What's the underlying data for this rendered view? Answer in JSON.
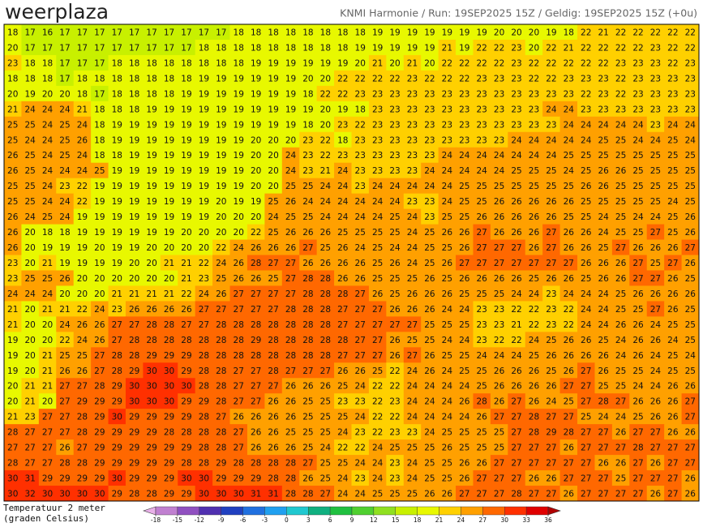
{
  "header": {
    "logo": "weerplaza",
    "title": "KNMI Harmonie / Run: 19SEP2025 15Z / Geldig: 19SEP2025 15Z (+0u)"
  },
  "map": {
    "grid": [
      [
        18,
        17,
        16,
        17,
        17,
        17,
        17,
        17,
        17,
        17,
        17,
        17,
        17,
        18,
        18,
        18,
        18,
        18,
        18,
        18,
        18,
        19,
        19,
        19,
        19,
        19,
        19,
        19,
        20,
        20,
        20,
        19,
        18,
        22,
        21,
        22,
        22,
        22,
        22,
        22
      ],
      [
        20,
        17,
        17,
        17,
        17,
        17,
        17,
        17,
        17,
        17,
        17,
        18,
        18,
        18,
        18,
        18,
        18,
        18,
        18,
        18,
        19,
        19,
        19,
        19,
        19,
        21,
        19,
        22,
        22,
        23,
        20,
        22,
        21,
        22,
        22,
        22,
        22,
        23,
        22,
        22
      ],
      [
        23,
        18,
        18,
        17,
        17,
        17,
        18,
        18,
        18,
        18,
        18,
        18,
        18,
        18,
        19,
        19,
        19,
        19,
        19,
        19,
        20,
        21,
        20,
        21,
        20,
        22,
        22,
        22,
        22,
        23,
        22,
        22,
        22,
        22,
        22,
        23,
        23,
        23,
        22,
        23
      ],
      [
        18,
        18,
        18,
        17,
        18,
        18,
        18,
        18,
        18,
        18,
        18,
        19,
        19,
        19,
        19,
        19,
        19,
        20,
        20,
        22,
        22,
        22,
        22,
        23,
        22,
        22,
        22,
        23,
        23,
        23,
        22,
        22,
        23,
        23,
        23,
        22,
        23,
        23,
        23,
        23
      ],
      [
        20,
        19,
        20,
        20,
        18,
        17,
        18,
        18,
        18,
        18,
        19,
        19,
        19,
        19,
        19,
        19,
        19,
        18,
        22,
        22,
        23,
        23,
        23,
        23,
        23,
        23,
        23,
        23,
        23,
        23,
        23,
        23,
        23,
        22,
        23,
        22,
        23,
        23,
        23,
        23
      ],
      [
        21,
        24,
        24,
        24,
        21,
        18,
        18,
        18,
        19,
        19,
        19,
        19,
        19,
        19,
        19,
        19,
        19,
        19,
        20,
        19,
        18,
        23,
        23,
        23,
        23,
        23,
        23,
        23,
        23,
        23,
        23,
        24,
        24,
        23,
        23,
        23,
        23,
        23,
        23,
        23
      ],
      [
        25,
        25,
        24,
        25,
        24,
        18,
        19,
        19,
        19,
        19,
        19,
        19,
        19,
        19,
        19,
        19,
        19,
        18,
        20,
        23,
        22,
        23,
        23,
        23,
        23,
        23,
        23,
        23,
        23,
        23,
        23,
        23,
        24,
        24,
        24,
        24,
        24,
        23,
        24,
        24
      ],
      [
        25,
        24,
        24,
        25,
        26,
        18,
        19,
        19,
        19,
        19,
        19,
        19,
        19,
        19,
        20,
        20,
        20,
        23,
        22,
        18,
        23,
        23,
        23,
        23,
        23,
        23,
        23,
        23,
        23,
        24,
        24,
        24,
        24,
        24,
        25,
        25,
        24,
        24,
        25,
        24
      ],
      [
        26,
        25,
        24,
        25,
        24,
        18,
        18,
        19,
        19,
        19,
        19,
        19,
        19,
        19,
        20,
        20,
        24,
        23,
        22,
        23,
        23,
        23,
        23,
        23,
        23,
        24,
        24,
        24,
        24,
        24,
        24,
        24,
        25,
        25,
        25,
        25,
        25,
        25,
        25,
        25
      ],
      [
        26,
        25,
        24,
        24,
        24,
        25,
        19,
        19,
        19,
        19,
        19,
        19,
        19,
        19,
        20,
        20,
        24,
        23,
        21,
        24,
        23,
        23,
        23,
        23,
        24,
        24,
        24,
        24,
        24,
        25,
        25,
        25,
        24,
        25,
        26,
        26,
        25,
        25,
        25,
        25
      ],
      [
        25,
        25,
        24,
        23,
        22,
        19,
        19,
        19,
        19,
        19,
        19,
        19,
        19,
        19,
        20,
        20,
        25,
        25,
        24,
        24,
        23,
        24,
        24,
        24,
        24,
        24,
        25,
        25,
        25,
        25,
        25,
        25,
        25,
        26,
        26,
        25,
        25,
        25,
        25,
        25
      ],
      [
        25,
        25,
        24,
        24,
        22,
        19,
        19,
        19,
        19,
        19,
        19,
        19,
        20,
        19,
        19,
        25,
        26,
        24,
        24,
        24,
        24,
        24,
        24,
        23,
        23,
        24,
        25,
        25,
        26,
        26,
        26,
        26,
        26,
        25,
        25,
        25,
        25,
        25,
        24,
        25
      ],
      [
        26,
        24,
        25,
        24,
        19,
        19,
        19,
        19,
        19,
        19,
        19,
        19,
        20,
        20,
        20,
        24,
        25,
        25,
        24,
        24,
        24,
        24,
        25,
        24,
        23,
        25,
        25,
        26,
        26,
        26,
        26,
        26,
        25,
        25,
        24,
        25,
        24,
        24,
        25,
        26
      ],
      [
        26,
        20,
        18,
        18,
        19,
        19,
        19,
        19,
        19,
        19,
        20,
        20,
        20,
        20,
        22,
        25,
        26,
        26,
        26,
        25,
        25,
        25,
        25,
        24,
        25,
        26,
        26,
        27,
        26,
        26,
        26,
        27,
        26,
        26,
        24,
        25,
        25,
        27,
        25,
        26
      ],
      [
        26,
        20,
        19,
        19,
        19,
        20,
        19,
        19,
        20,
        20,
        20,
        20,
        22,
        24,
        26,
        26,
        26,
        27,
        25,
        26,
        24,
        25,
        24,
        24,
        25,
        25,
        26,
        27,
        27,
        27,
        26,
        27,
        26,
        26,
        25,
        27,
        26,
        26,
        26,
        27
      ],
      [
        23,
        20,
        21,
        19,
        19,
        19,
        19,
        20,
        20,
        21,
        21,
        22,
        24,
        26,
        28,
        27,
        27,
        26,
        26,
        26,
        26,
        25,
        26,
        24,
        25,
        26,
        27,
        27,
        27,
        27,
        27,
        27,
        27,
        26,
        26,
        26,
        27,
        25,
        27,
        26
      ],
      [
        23,
        25,
        25,
        26,
        20,
        20,
        20,
        20,
        20,
        20,
        21,
        23,
        25,
        26,
        26,
        25,
        27,
        28,
        28,
        26,
        26,
        25,
        25,
        25,
        26,
        25,
        26,
        26,
        26,
        26,
        25,
        26,
        26,
        25,
        26,
        26,
        27,
        27,
        26,
        25
      ],
      [
        24,
        24,
        24,
        20,
        20,
        20,
        21,
        21,
        21,
        21,
        22,
        24,
        26,
        27,
        27,
        27,
        27,
        28,
        28,
        28,
        27,
        26,
        25,
        26,
        26,
        26,
        25,
        25,
        25,
        24,
        24,
        23,
        24,
        24,
        24,
        25,
        26,
        26,
        26,
        26
      ],
      [
        21,
        20,
        21,
        21,
        22,
        24,
        23,
        26,
        26,
        26,
        26,
        27,
        27,
        27,
        27,
        27,
        28,
        28,
        28,
        27,
        27,
        27,
        26,
        26,
        26,
        24,
        24,
        23,
        23,
        22,
        22,
        23,
        22,
        24,
        24,
        25,
        25,
        27,
        26,
        25
      ],
      [
        21,
        20,
        20,
        24,
        26,
        26,
        27,
        27,
        28,
        28,
        27,
        27,
        28,
        28,
        28,
        28,
        28,
        28,
        28,
        27,
        27,
        27,
        27,
        27,
        25,
        25,
        25,
        23,
        23,
        21,
        22,
        23,
        22,
        24,
        24,
        26,
        26,
        24,
        25,
        25
      ],
      [
        19,
        20,
        20,
        22,
        24,
        26,
        27,
        28,
        28,
        28,
        28,
        28,
        28,
        28,
        29,
        28,
        28,
        28,
        28,
        28,
        27,
        27,
        26,
        25,
        25,
        24,
        24,
        23,
        22,
        22,
        24,
        25,
        26,
        26,
        25,
        24,
        26,
        26,
        24,
        25
      ],
      [
        19,
        20,
        21,
        25,
        25,
        27,
        28,
        28,
        29,
        29,
        29,
        28,
        28,
        28,
        28,
        28,
        28,
        28,
        28,
        27,
        27,
        27,
        26,
        27,
        26,
        25,
        25,
        24,
        24,
        24,
        25,
        26,
        26,
        26,
        26,
        24,
        26,
        24,
        25,
        24
      ],
      [
        19,
        20,
        21,
        26,
        26,
        27,
        28,
        29,
        30,
        30,
        29,
        28,
        28,
        27,
        27,
        28,
        27,
        27,
        27,
        26,
        26,
        25,
        22,
        24,
        26,
        24,
        25,
        25,
        26,
        26,
        26,
        25,
        26,
        27,
        26,
        25,
        25,
        24,
        25,
        25
      ],
      [
        20,
        21,
        21,
        27,
        27,
        28,
        29,
        30,
        30,
        30,
        30,
        28,
        28,
        27,
        27,
        27,
        26,
        26,
        26,
        25,
        24,
        22,
        22,
        24,
        24,
        24,
        24,
        25,
        26,
        26,
        26,
        26,
        27,
        27,
        25,
        25,
        24,
        24,
        26,
        26
      ],
      [
        20,
        21,
        20,
        27,
        29,
        29,
        29,
        30,
        30,
        30,
        29,
        29,
        28,
        27,
        27,
        26,
        26,
        25,
        25,
        23,
        23,
        22,
        23,
        24,
        24,
        24,
        26,
        28,
        26,
        27,
        26,
        24,
        25,
        27,
        28,
        27,
        26,
        26,
        26,
        27
      ],
      [
        21,
        23,
        27,
        27,
        28,
        29,
        30,
        29,
        29,
        29,
        29,
        28,
        27,
        26,
        26,
        26,
        26,
        25,
        25,
        25,
        24,
        22,
        22,
        24,
        24,
        24,
        24,
        26,
        27,
        27,
        28,
        27,
        27,
        25,
        24,
        24,
        25,
        26,
        26,
        27
      ],
      [
        28,
        27,
        27,
        27,
        28,
        29,
        29,
        29,
        29,
        28,
        28,
        28,
        28,
        27,
        26,
        26,
        25,
        25,
        25,
        24,
        23,
        22,
        23,
        23,
        24,
        25,
        25,
        25,
        25,
        27,
        28,
        29,
        28,
        27,
        27,
        26,
        27,
        27,
        26,
        26
      ],
      [
        27,
        27,
        27,
        26,
        27,
        29,
        29,
        29,
        29,
        29,
        29,
        28,
        28,
        27,
        26,
        26,
        26,
        25,
        24,
        22,
        22,
        24,
        25,
        25,
        25,
        26,
        25,
        25,
        25,
        27,
        27,
        27,
        26,
        27,
        27,
        27,
        28,
        27,
        27,
        27
      ],
      [
        28,
        27,
        27,
        28,
        28,
        29,
        29,
        29,
        29,
        29,
        28,
        28,
        29,
        28,
        28,
        28,
        28,
        27,
        25,
        25,
        24,
        24,
        23,
        24,
        25,
        25,
        26,
        26,
        27,
        27,
        27,
        27,
        27,
        27,
        26,
        26,
        27,
        26,
        27,
        27
      ],
      [
        30,
        31,
        29,
        29,
        29,
        29,
        30,
        29,
        29,
        29,
        30,
        30,
        29,
        29,
        29,
        28,
        28,
        26,
        25,
        24,
        23,
        24,
        23,
        24,
        25,
        25,
        26,
        27,
        27,
        27,
        26,
        26,
        27,
        27,
        27,
        25,
        27,
        27,
        27,
        26
      ],
      [
        30,
        32,
        30,
        30,
        30,
        30,
        29,
        28,
        28,
        29,
        29,
        30,
        30,
        30,
        31,
        31,
        28,
        28,
        27,
        24,
        24,
        25,
        25,
        25,
        26,
        26,
        27,
        27,
        27,
        28,
        27,
        27,
        26,
        27,
        27,
        27,
        27,
        26,
        27,
        26
      ]
    ]
  },
  "colorbar": {
    "title": "Temperatuur 2 meter",
    "unit": "(graden Celsius)",
    "ticks": [
      -18,
      -15,
      -12,
      -9,
      -6,
      -3,
      0,
      3,
      6,
      9,
      12,
      15,
      18,
      21,
      24,
      27,
      30,
      33,
      36
    ],
    "colors": [
      "#e8b0e8",
      "#c080d0",
      "#9050c0",
      "#5030b0",
      "#2040c0",
      "#2070e0",
      "#20a0f0",
      "#20c8d0",
      "#10b080",
      "#20c040",
      "#50d030",
      "#90e020",
      "#c8f000",
      "#e8f800",
      "#ffd000",
      "#ffa000",
      "#ff6800",
      "#ff3000",
      "#e00000",
      "#b00000"
    ]
  }
}
